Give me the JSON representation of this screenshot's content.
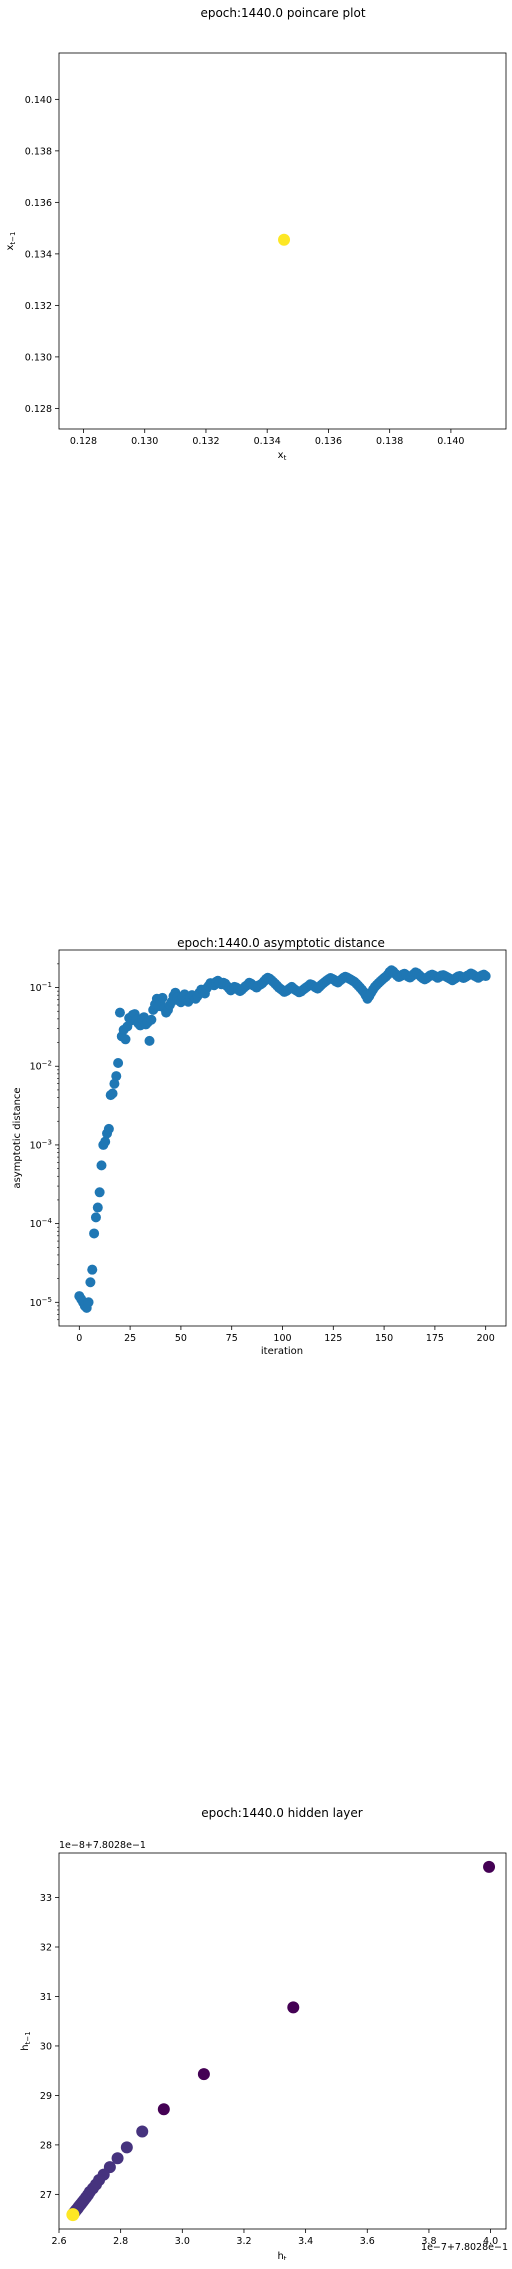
{
  "chart_data": [
    {
      "type": "scatter",
      "title": "epoch:1440.0 poincare plot",
      "xlabel": "x_t",
      "ylabel": "x_{t-1}",
      "xlim": [
        0.1272,
        0.1418
      ],
      "ylim": [
        0.1272,
        0.1418
      ],
      "xticks": [
        0.128,
        0.13,
        0.132,
        0.134,
        0.136,
        0.138,
        0.14
      ],
      "xtick_labels": [
        "0.128",
        "0.130",
        "0.132",
        "0.134",
        "0.136",
        "0.138",
        "0.140"
      ],
      "yticks": [
        0.128,
        0.13,
        0.132,
        0.134,
        0.136,
        0.138,
        0.14
      ],
      "ytick_labels": [
        "0.128",
        "0.130",
        "0.132",
        "0.134",
        "0.136",
        "0.138",
        "0.140"
      ],
      "point_color": "#fde725",
      "points": [
        {
          "x": 0.13455,
          "y": 0.13455
        }
      ]
    },
    {
      "type": "scatter",
      "title": "epoch:1440.0 asymptotic distance",
      "xlabel": "iteration",
      "ylabel": "asymptotic distance",
      "yscale": "log",
      "xlim": [
        -10,
        210
      ],
      "ylim": [
        5e-06,
        0.3
      ],
      "xticks": [
        0,
        25,
        50,
        75,
        100,
        125,
        150,
        175,
        200
      ],
      "xtick_labels": [
        "0",
        "25",
        "50",
        "75",
        "100",
        "125",
        "150",
        "175",
        "200"
      ],
      "yticks": [
        1e-05,
        0.0001,
        0.001,
        0.01,
        0.1
      ],
      "point_color": "#1f77b4",
      "x_range": [
        0,
        200
      ],
      "y": [
        1.2e-05,
        1.1e-05,
        1e-05,
        9e-06,
        8.5e-06,
        1e-05,
        1.8e-05,
        2.6e-05,
        7.5e-05,
        0.00012,
        0.00016,
        0.00025,
        0.00055,
        0.001,
        0.0011,
        0.0014,
        0.0016,
        0.0043,
        0.0045,
        0.006,
        0.0075,
        0.011,
        0.048,
        0.024,
        0.029,
        0.022,
        0.032,
        0.041,
        0.038,
        0.045,
        0.046,
        0.039,
        0.035,
        0.033,
        0.04,
        0.042,
        0.034,
        0.036,
        0.021,
        0.039,
        0.052,
        0.061,
        0.072,
        0.058,
        0.067,
        0.074,
        0.055,
        0.048,
        0.052,
        0.06,
        0.066,
        0.078,
        0.086,
        0.075,
        0.068,
        0.065,
        0.076,
        0.082,
        0.07,
        0.066,
        0.074,
        0.08,
        0.077,
        0.072,
        0.078,
        0.086,
        0.094,
        0.09,
        0.084,
        0.098,
        0.105,
        0.114,
        0.112,
        0.107,
        0.118,
        0.122,
        0.116,
        0.11,
        0.115,
        0.112,
        0.104,
        0.098,
        0.092,
        0.096,
        0.102,
        0.1,
        0.094,
        0.09,
        0.094,
        0.099,
        0.104,
        0.108,
        0.115,
        0.112,
        0.107,
        0.104,
        0.1,
        0.106,
        0.109,
        0.113,
        0.12,
        0.128,
        0.133,
        0.13,
        0.124,
        0.118,
        0.112,
        0.106,
        0.1,
        0.096,
        0.092,
        0.088,
        0.09,
        0.094,
        0.098,
        0.102,
        0.097,
        0.093,
        0.09,
        0.087,
        0.089,
        0.093,
        0.097,
        0.101,
        0.105,
        0.11,
        0.108,
        0.104,
        0.1,
        0.097,
        0.102,
        0.108,
        0.113,
        0.118,
        0.123,
        0.128,
        0.132,
        0.129,
        0.125,
        0.119,
        0.116,
        0.122,
        0.127,
        0.133,
        0.137,
        0.134,
        0.13,
        0.126,
        0.122,
        0.118,
        0.112,
        0.106,
        0.1,
        0.094,
        0.088,
        0.08,
        0.072,
        0.078,
        0.086,
        0.094,
        0.102,
        0.108,
        0.114,
        0.12,
        0.126,
        0.132,
        0.138,
        0.146,
        0.158,
        0.166,
        0.16,
        0.15,
        0.142,
        0.136,
        0.14,
        0.146,
        0.15,
        0.144,
        0.138,
        0.134,
        0.14,
        0.148,
        0.156,
        0.152,
        0.144,
        0.137,
        0.131,
        0.127,
        0.131,
        0.137,
        0.143,
        0.146,
        0.142,
        0.138,
        0.133,
        0.137,
        0.142,
        0.144,
        0.14,
        0.136,
        0.132,
        0.128,
        0.124,
        0.128,
        0.133,
        0.138,
        0.14,
        0.136,
        0.132,
        0.136,
        0.141,
        0.145,
        0.151,
        0.147,
        0.141,
        0.137,
        0.133,
        0.138,
        0.143,
        0.146,
        0.14
      ]
    },
    {
      "type": "scatter",
      "title": "epoch:1440.0 hidden layer",
      "xlabel": "h_t",
      "ylabel": "h_{t-1}",
      "x_offset_text": "1e−7+7.8028e−1",
      "y_offset_text": "1e−8+7.8028e−1",
      "xlim": [
        2.6,
        4.05
      ],
      "ylim": [
        26.3,
        33.9
      ],
      "xticks": [
        2.6,
        2.8,
        3.0,
        3.2,
        3.4,
        3.6,
        3.8,
        4.0
      ],
      "xtick_labels": [
        "2.6",
        "2.8",
        "3.0",
        "3.2",
        "3.4",
        "3.6",
        "3.8",
        "4.0"
      ],
      "yticks": [
        27,
        28,
        29,
        30,
        31,
        32,
        33
      ],
      "ytick_labels": [
        "27",
        "28",
        "29",
        "30",
        "31",
        "32",
        "33"
      ],
      "colormap": "viridis",
      "colors": {
        "start": "#440154",
        "end": "#fde725",
        "mid_dark": "#46337e"
      },
      "points": [
        {
          "x": 3.995,
          "y": 33.62
        },
        {
          "x": 3.36,
          "y": 30.78
        },
        {
          "x": 3.07,
          "y": 29.43
        },
        {
          "x": 2.94,
          "y": 28.72
        },
        {
          "x": 2.87,
          "y": 28.27
        },
        {
          "x": 2.82,
          "y": 27.95
        },
        {
          "x": 2.79,
          "y": 27.73
        },
        {
          "x": 2.765,
          "y": 27.55
        },
        {
          "x": 2.745,
          "y": 27.4
        },
        {
          "x": 2.73,
          "y": 27.29
        },
        {
          "x": 2.72,
          "y": 27.2
        },
        {
          "x": 2.71,
          "y": 27.12
        },
        {
          "x": 2.7,
          "y": 27.05
        },
        {
          "x": 2.694,
          "y": 26.99
        },
        {
          "x": 2.688,
          "y": 26.94
        },
        {
          "x": 2.682,
          "y": 26.89
        },
        {
          "x": 2.677,
          "y": 26.85
        },
        {
          "x": 2.672,
          "y": 26.81
        },
        {
          "x": 2.668,
          "y": 26.78
        },
        {
          "x": 2.664,
          "y": 26.75
        },
        {
          "x": 2.661,
          "y": 26.72
        },
        {
          "x": 2.658,
          "y": 26.7
        },
        {
          "x": 2.655,
          "y": 26.68
        },
        {
          "x": 2.653,
          "y": 26.66
        },
        {
          "x": 2.651,
          "y": 26.64
        },
        {
          "x": 2.649,
          "y": 26.63
        },
        {
          "x": 2.648,
          "y": 26.62
        },
        {
          "x": 2.647,
          "y": 26.61
        },
        {
          "x": 2.646,
          "y": 26.6
        },
        {
          "x": 2.645,
          "y": 26.595
        }
      ],
      "final_point": {
        "x": 2.645,
        "y": 26.59
      }
    }
  ]
}
